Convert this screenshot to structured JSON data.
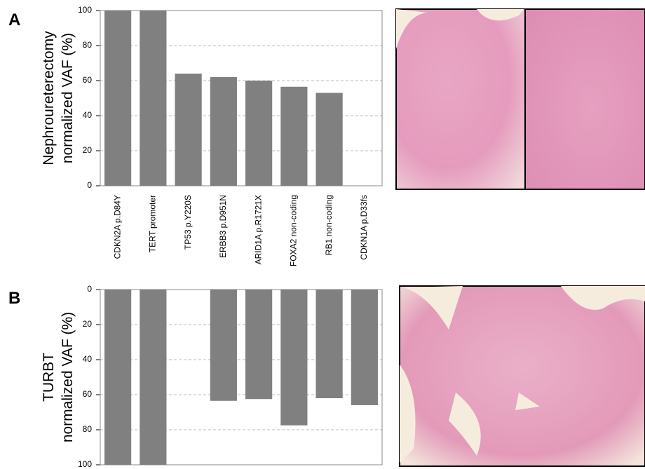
{
  "chart_data": [
    {
      "type": "bar",
      "panel_label": "A",
      "ylabel": [
        "Nephroureterectomy",
        "normalized VAF (%)"
      ],
      "categories": [
        "CDKN2A p.D84Y",
        "TERT promoter",
        "TP53 p.Y220S",
        "ERBB3 p.D951N",
        "ARID1A p.R1721X",
        "FOXA2 non-coding",
        "RB1 non-coding",
        "CDKN1A p.D33fs"
      ],
      "values": [
        100,
        100,
        64,
        62,
        60,
        56.5,
        53,
        0
      ],
      "color": "#808080",
      "ylim": [
        0,
        100
      ],
      "yticks": [
        0,
        20,
        40,
        60,
        80,
        100
      ],
      "inverted": false,
      "grid": true
    },
    {
      "type": "bar",
      "panel_label": "B",
      "ylabel": [
        "TURBT",
        "normalized VAF (%)"
      ],
      "values": [
        100,
        100,
        0,
        63.5,
        62.5,
        77.5,
        62,
        66
      ],
      "color": "#808080",
      "ylim": [
        0,
        100
      ],
      "yticks": [
        0,
        20,
        40,
        60,
        80,
        100
      ],
      "inverted": true,
      "grid": true
    }
  ]
}
